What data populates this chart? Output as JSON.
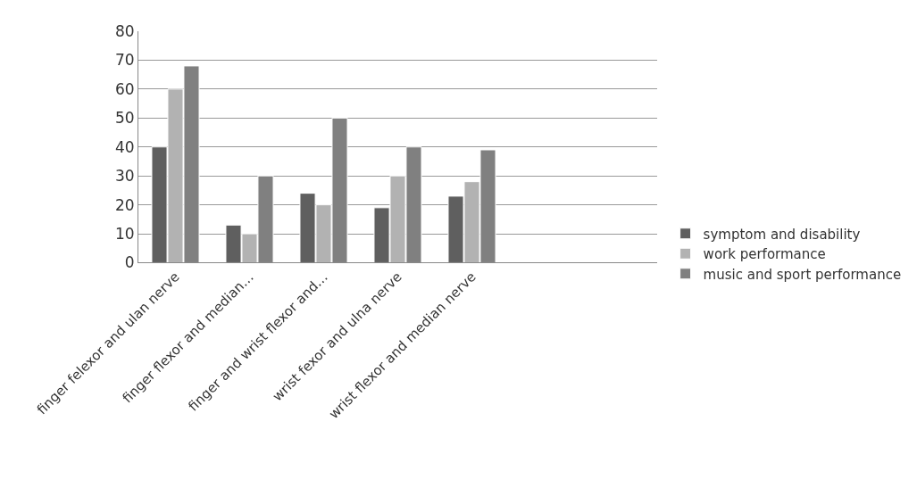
{
  "chart_data": {
    "type": "bar",
    "categories": [
      "finger felexor and ulan nerve",
      "finger flexor and median…",
      "finger and wrist flexor and…",
      "wrist fexor and ulna nerve",
      "wrist flexor and median nerve",
      null,
      null
    ],
    "series": [
      {
        "name": "symptom and disability",
        "color": "#5f5f5f",
        "values": [
          40,
          13,
          24,
          19,
          23,
          null,
          null
        ]
      },
      {
        "name": "work performance",
        "color": "#b2b2b2",
        "values": [
          60,
          10,
          20,
          30,
          28,
          null,
          null
        ]
      },
      {
        "name": "music and sport performance",
        "color": "#808080",
        "values": [
          68,
          30,
          50,
          40,
          39,
          null,
          null
        ]
      }
    ],
    "ylim": [
      0,
      80
    ],
    "yticks": [
      0,
      10,
      20,
      30,
      40,
      50,
      60,
      70,
      80
    ],
    "grid": "y",
    "legend": "right"
  }
}
